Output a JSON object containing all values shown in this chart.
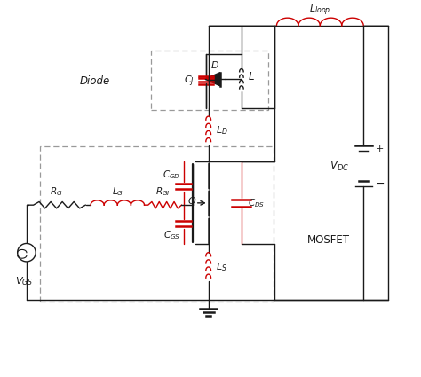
{
  "background_color": "#ffffff",
  "black_color": "#1a1a1a",
  "red_color": "#cc0000",
  "gray_color": "#999999",
  "figsize": [
    4.74,
    4.25
  ],
  "dpi": 100
}
